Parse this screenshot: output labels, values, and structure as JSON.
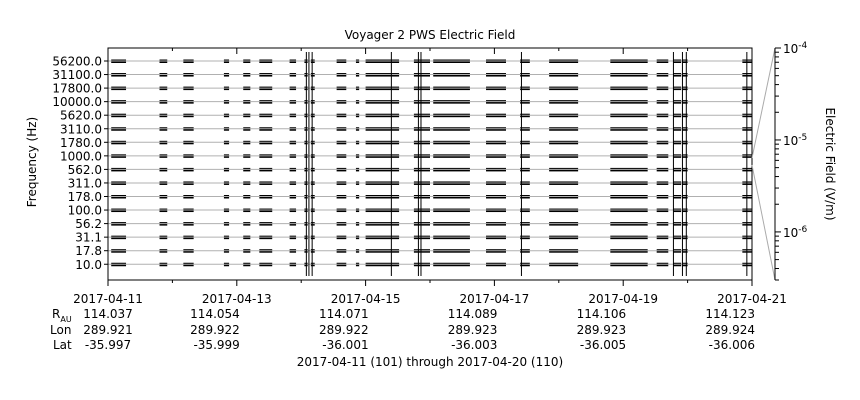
{
  "chart_data": {
    "type": "heatmap",
    "title": "Voyager 2 PWS Electric Field",
    "ylabel": "Frequency (Hz)",
    "colorbar_label": "Electric Field (V/m)",
    "colorbar_scale": "log",
    "colorbar_range": [
      3e-07,
      0.0001
    ],
    "colorbar_ticks": [
      {
        "base": "10",
        "exp": "-4",
        "value": 0.0001
      },
      {
        "base": "10",
        "exp": "-5",
        "value": 1e-05
      },
      {
        "base": "10",
        "exp": "-6",
        "value": 1e-06
      }
    ],
    "channels": [
      "56200.0",
      "31100.0",
      "17800.0",
      "10000.0",
      "5620.0",
      "3110.0",
      "1780.0",
      "1000.0",
      "562.0",
      "311.0",
      "178.0",
      "100.0",
      "56.2",
      "31.1",
      "17.8",
      "10.0"
    ],
    "x_range_days": [
      0,
      10
    ],
    "x_ticks": [
      {
        "date": "2017-04-11",
        "rau": "114.037",
        "lon": "289.921",
        "lat": "-35.997"
      },
      {
        "date": "2017-04-13",
        "rau": "114.054",
        "lon": "289.922",
        "lat": "-35.999"
      },
      {
        "date": "2017-04-15",
        "rau": "114.071",
        "lon": "289.922",
        "lat": "-36.001"
      },
      {
        "date": "2017-04-17",
        "rau": "114.089",
        "lon": "289.923",
        "lat": "-36.003"
      },
      {
        "date": "2017-04-19",
        "rau": "114.106",
        "lon": "289.923",
        "lat": "-36.005"
      },
      {
        "date": "2017-04-21",
        "rau": "114.123",
        "lon": "289.924",
        "lat": "-36.006"
      }
    ],
    "row_labels": {
      "rau": "R",
      "rau_sub": "AU",
      "lon": "Lon",
      "lat": "Lat"
    },
    "footer": "2017-04-11 (101) through 2017-04-20 (110)",
    "data_segments_days": [
      [
        0.05,
        0.28
      ],
      [
        0.8,
        0.92
      ],
      [
        1.17,
        1.33
      ],
      [
        1.8,
        1.88
      ],
      [
        2.1,
        2.21
      ],
      [
        2.35,
        2.55
      ],
      [
        2.82,
        2.92
      ],
      [
        3.05,
        3.1
      ],
      [
        3.15,
        3.21
      ],
      [
        3.55,
        3.7
      ],
      [
        3.85,
        3.9
      ],
      [
        4.0,
        4.52
      ],
      [
        4.75,
        5.0
      ],
      [
        5.05,
        5.62
      ],
      [
        5.87,
        6.18
      ],
      [
        6.4,
        6.55
      ],
      [
        6.85,
        7.3
      ],
      [
        7.8,
        8.38
      ],
      [
        8.52,
        8.7
      ],
      [
        8.78,
        8.9
      ],
      [
        8.92,
        9.0
      ],
      [
        9.85,
        10.0
      ]
    ],
    "spikes_days": [
      3.08,
      3.12,
      3.17,
      4.4,
      4.82,
      4.86,
      6.42,
      8.78,
      8.92,
      8.98,
      9.92
    ]
  }
}
